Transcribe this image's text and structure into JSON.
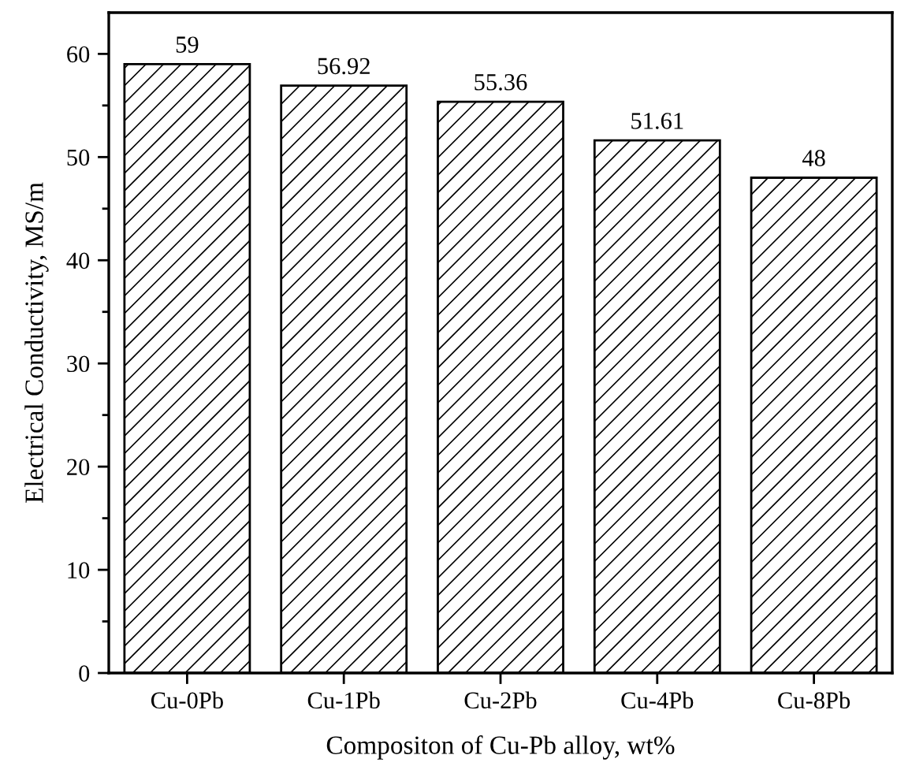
{
  "chart_data": {
    "type": "bar",
    "xlabel": "Compositon of Cu-Pb alloy, wt%",
    "ylabel": "Electrical Conductivity, MS/m",
    "categories": [
      "Cu-0Pb",
      "Cu-1Pb",
      "Cu-2Pb",
      "Cu-4Pb",
      "Cu-8Pb"
    ],
    "values": [
      59,
      56.92,
      55.36,
      51.61,
      48
    ],
    "color": "#000000",
    "data_labels": true,
    "ylim": [
      0,
      64
    ],
    "yticks": [
      0,
      {
        "value": 5,
        "label": null
      },
      10,
      {
        "value": 15,
        "label": null
      },
      20,
      {
        "value": 25,
        "label": null
      },
      30,
      {
        "value": 35,
        "label": null
      },
      40,
      {
        "value": 45,
        "label": null
      },
      50,
      {
        "value": 55,
        "label": null
      },
      60
    ],
    "grid": false,
    "legend": false
  }
}
